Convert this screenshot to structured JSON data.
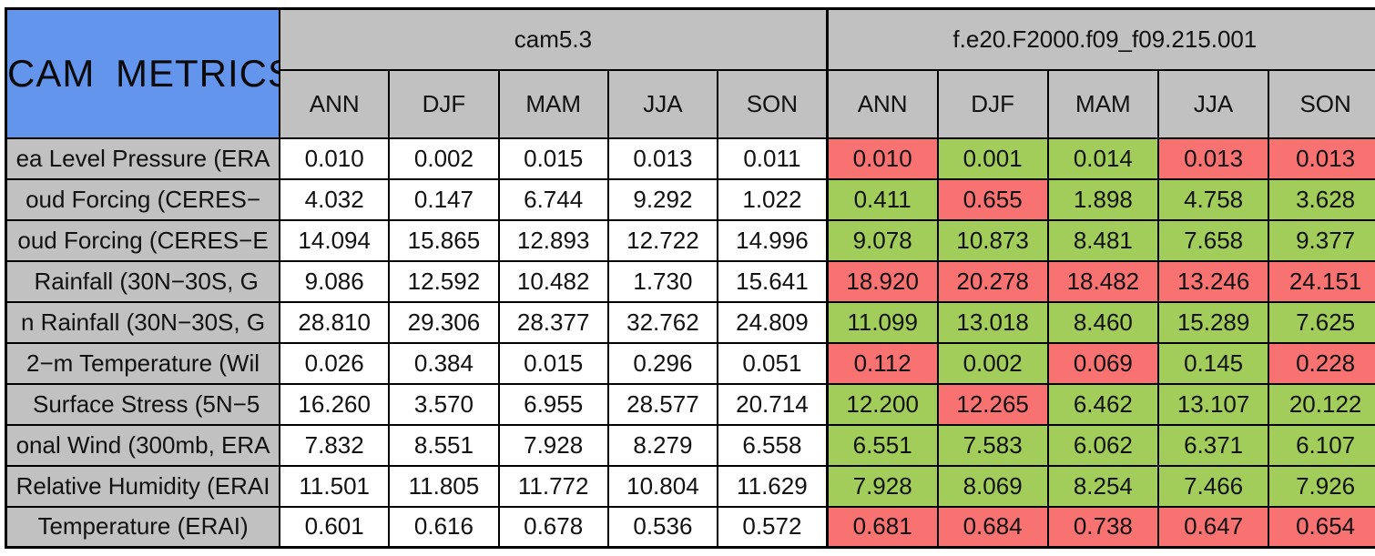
{
  "title": "CAM METRICS",
  "colors": {
    "title_bg": "#6495ED",
    "header_bg": "#C1C1C1",
    "better": "#A2CD5A",
    "worse": "#F87272",
    "border": "#000000"
  },
  "groups": [
    {
      "name": "cam5.3"
    },
    {
      "name": "f.e20.F2000.f09_f09.215.001"
    }
  ],
  "seasons": [
    "ANN",
    "DJF",
    "MAM",
    "JJA",
    "SON"
  ],
  "rows": [
    {
      "label": "ea Level Pressure (ERA",
      "baseline": [
        "0.010",
        "0.002",
        "0.015",
        "0.013",
        "0.011"
      ],
      "experiment": [
        "0.010",
        "0.001",
        "0.014",
        "0.013",
        "0.013"
      ],
      "experiment_status": [
        "worse",
        "better",
        "better",
        "worse",
        "worse"
      ]
    },
    {
      "label": "oud Forcing (CERES−",
      "baseline": [
        "4.032",
        "0.147",
        "6.744",
        "9.292",
        "1.022"
      ],
      "experiment": [
        "0.411",
        "0.655",
        "1.898",
        "4.758",
        "3.628"
      ],
      "experiment_status": [
        "better",
        "worse",
        "better",
        "better",
        "better"
      ]
    },
    {
      "label": "oud Forcing (CERES−E",
      "baseline": [
        "14.094",
        "15.865",
        "12.893",
        "12.722",
        "14.996"
      ],
      "experiment": [
        "9.078",
        "10.873",
        "8.481",
        "7.658",
        "9.377"
      ],
      "experiment_status": [
        "better",
        "better",
        "better",
        "better",
        "better"
      ]
    },
    {
      "label": " Rainfall (30N−30S, G",
      "baseline": [
        "9.086",
        "12.592",
        "10.482",
        "1.730",
        "15.641"
      ],
      "experiment": [
        "18.920",
        "20.278",
        "18.482",
        "13.246",
        "24.151"
      ],
      "experiment_status": [
        "worse",
        "worse",
        "worse",
        "worse",
        "worse"
      ]
    },
    {
      "label": "n Rainfall (30N−30S, G",
      "baseline": [
        "28.810",
        "29.306",
        "28.377",
        "32.762",
        "24.809"
      ],
      "experiment": [
        "11.099",
        "13.018",
        "8.460",
        "15.289",
        "7.625"
      ],
      "experiment_status": [
        "better",
        "better",
        "better",
        "better",
        "better"
      ]
    },
    {
      "label": "2−m Temperature (Wil",
      "baseline": [
        "0.026",
        "0.384",
        "0.015",
        "0.296",
        "0.051"
      ],
      "experiment": [
        "0.112",
        "0.002",
        "0.069",
        "0.145",
        "0.228"
      ],
      "experiment_status": [
        "worse",
        "better",
        "worse",
        "better",
        "worse"
      ]
    },
    {
      "label": " Surface Stress (5N−5",
      "baseline": [
        "16.260",
        "3.570",
        "6.955",
        "28.577",
        "20.714"
      ],
      "experiment": [
        "12.200",
        "12.265",
        "6.462",
        "13.107",
        "20.122"
      ],
      "experiment_status": [
        "better",
        "worse",
        "better",
        "better",
        "better"
      ]
    },
    {
      "label": "onal Wind (300mb, ERA",
      "baseline": [
        "7.832",
        "8.551",
        "7.928",
        "8.279",
        "6.558"
      ],
      "experiment": [
        "6.551",
        "7.583",
        "6.062",
        "6.371",
        "6.107"
      ],
      "experiment_status": [
        "better",
        "better",
        "better",
        "better",
        "better"
      ]
    },
    {
      "label": "Relative Humidity (ERAI",
      "baseline": [
        "11.501",
        "11.805",
        "11.772",
        "10.804",
        "11.629"
      ],
      "experiment": [
        "7.928",
        "8.069",
        "8.254",
        "7.466",
        "7.926"
      ],
      "experiment_status": [
        "better",
        "better",
        "better",
        "better",
        "better"
      ]
    },
    {
      "label": "Temperature (ERAI)",
      "baseline": [
        "0.601",
        "0.616",
        "0.678",
        "0.536",
        "0.572"
      ],
      "experiment": [
        "0.681",
        "0.684",
        "0.738",
        "0.647",
        "0.654"
      ],
      "experiment_status": [
        "worse",
        "worse",
        "worse",
        "worse",
        "worse"
      ]
    }
  ],
  "chart_data": {
    "type": "table",
    "title": "CAM METRICS",
    "column_groups": [
      {
        "name": "cam5.3",
        "columns": [
          "ANN",
          "DJF",
          "MAM",
          "JJA",
          "SON"
        ]
      },
      {
        "name": "f.e20.F2000.f09_f09.215.001",
        "columns": [
          "ANN",
          "DJF",
          "MAM",
          "JJA",
          "SON"
        ]
      }
    ],
    "row_labels": [
      "ea Level Pressure (ERA",
      "oud Forcing (CERES−",
      "oud Forcing (CERES−E",
      " Rainfall (30N−30S, G",
      "n Rainfall (30N−30S, G",
      "2−m Temperature (Wil",
      " Surface Stress (5N−5",
      "onal Wind (300mb, ERA",
      "Relative Humidity (ERAI",
      "Temperature (ERAI)"
    ],
    "series": [
      {
        "name": "cam5.3",
        "values": [
          [
            0.01,
            0.002,
            0.015,
            0.013,
            0.011
          ],
          [
            4.032,
            0.147,
            6.744,
            9.292,
            1.022
          ],
          [
            14.094,
            15.865,
            12.893,
            12.722,
            14.996
          ],
          [
            9.086,
            12.592,
            10.482,
            1.73,
            15.641
          ],
          [
            28.81,
            29.306,
            28.377,
            32.762,
            24.809
          ],
          [
            0.026,
            0.384,
            0.015,
            0.296,
            0.051
          ],
          [
            16.26,
            3.57,
            6.955,
            28.577,
            20.714
          ],
          [
            7.832,
            8.551,
            7.928,
            8.279,
            6.558
          ],
          [
            11.501,
            11.805,
            11.772,
            10.804,
            11.629
          ],
          [
            0.601,
            0.616,
            0.678,
            0.536,
            0.572
          ]
        ]
      },
      {
        "name": "f.e20.F2000.f09_f09.215.001",
        "values": [
          [
            0.01,
            0.001,
            0.014,
            0.013,
            0.013
          ],
          [
            0.411,
            0.655,
            1.898,
            4.758,
            3.628
          ],
          [
            9.078,
            10.873,
            8.481,
            7.658,
            9.377
          ],
          [
            18.92,
            20.278,
            18.482,
            13.246,
            24.151
          ],
          [
            11.099,
            13.018,
            8.46,
            15.289,
            7.625
          ],
          [
            0.112,
            0.002,
            0.069,
            0.145,
            0.228
          ],
          [
            12.2,
            12.265,
            6.462,
            13.107,
            20.122
          ],
          [
            6.551,
            7.583,
            6.062,
            6.371,
            6.107
          ],
          [
            7.928,
            8.069,
            8.254,
            7.466,
            7.926
          ],
          [
            0.681,
            0.684,
            0.738,
            0.647,
            0.654
          ]
        ],
        "cell_highlight": [
          [
            "worse",
            "better",
            "better",
            "worse",
            "worse"
          ],
          [
            "better",
            "worse",
            "better",
            "better",
            "better"
          ],
          [
            "better",
            "better",
            "better",
            "better",
            "better"
          ],
          [
            "worse",
            "worse",
            "worse",
            "worse",
            "worse"
          ],
          [
            "better",
            "better",
            "better",
            "better",
            "better"
          ],
          [
            "worse",
            "better",
            "worse",
            "better",
            "worse"
          ],
          [
            "better",
            "worse",
            "better",
            "better",
            "better"
          ],
          [
            "better",
            "better",
            "better",
            "better",
            "better"
          ],
          [
            "better",
            "better",
            "better",
            "better",
            "better"
          ],
          [
            "worse",
            "worse",
            "worse",
            "worse",
            "worse"
          ]
        ],
        "highlight_colors": {
          "better": "#A2CD5A",
          "worse": "#F87272"
        }
      }
    ]
  }
}
